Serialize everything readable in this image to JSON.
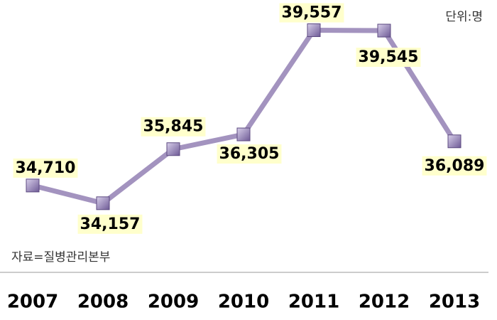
{
  "chart_data": {
    "type": "line",
    "unit_note": "단위:명",
    "source": "자료=질병관리본부",
    "categories": [
      "2007",
      "2008",
      "2009",
      "2010",
      "2011",
      "2012",
      "2013"
    ],
    "series": [
      {
        "color": "#a393bf",
        "values": [
          34710,
          34157,
          35845,
          36305,
          39557,
          39545,
          36089
        ],
        "value_labels": [
          "34,710",
          "34,157",
          "35,845",
          "36,305",
          "39,557",
          "39,545",
          "36,089"
        ]
      }
    ],
    "ylim": [
      32000,
      40500
    ]
  }
}
